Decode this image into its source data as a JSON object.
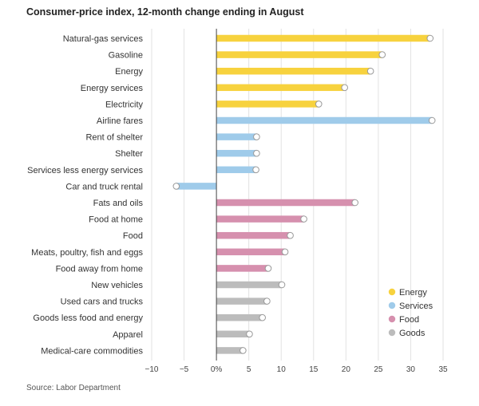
{
  "chart_data": {
    "type": "bar",
    "orientation": "horizontal",
    "title": "Consumer-price index, 12-month change ending in August",
    "source": "Source: Labor Department",
    "xlabel": "",
    "ylabel": "",
    "xlim": [
      -10,
      35
    ],
    "x_ticks": [
      -10,
      -5,
      0,
      5,
      10,
      15,
      20,
      25,
      30,
      35
    ],
    "x_tick_labels": [
      "−10",
      "−5",
      "0%",
      "5",
      "10",
      "15",
      "20",
      "25",
      "30",
      "35"
    ],
    "grid": true,
    "legend_position": "bottom-right",
    "groups": [
      {
        "name": "Energy",
        "color": "#f7d23e"
      },
      {
        "name": "Services",
        "color": "#9fcbea"
      },
      {
        "name": "Food",
        "color": "#d690ae"
      },
      {
        "name": "Goods",
        "color": "#bcbcbc"
      }
    ],
    "categories": [
      "Natural-gas services",
      "Gasoline",
      "Energy",
      "Energy services",
      "Electricity",
      "Airline fares",
      "Rent of shelter",
      "Shelter",
      "Services less energy services",
      "Car and truck rental",
      "Fats and oils",
      "Food at home",
      "Food",
      "Meats, poultry, fish and eggs",
      "Food away from home",
      "New vehicles",
      "Used cars and trucks",
      "Goods less food and energy",
      "Apparel",
      "Medical-care commodities"
    ],
    "values": [
      33.0,
      25.6,
      23.8,
      19.8,
      15.8,
      33.3,
      6.2,
      6.2,
      6.1,
      -6.2,
      21.4,
      13.5,
      11.4,
      10.6,
      8.0,
      10.1,
      7.8,
      7.1,
      5.1,
      4.1
    ],
    "category_groups": [
      "Energy",
      "Energy",
      "Energy",
      "Energy",
      "Energy",
      "Services",
      "Services",
      "Services",
      "Services",
      "Services",
      "Food",
      "Food",
      "Food",
      "Food",
      "Food",
      "Goods",
      "Goods",
      "Goods",
      "Goods",
      "Goods"
    ]
  }
}
